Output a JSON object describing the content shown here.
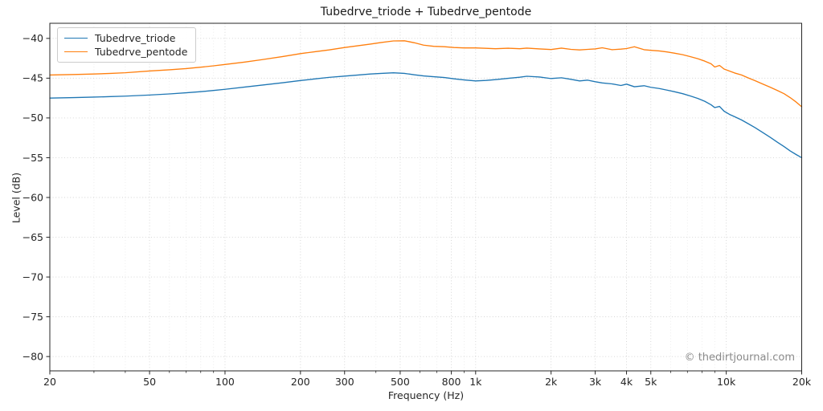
{
  "watermark": "© thedirtjournal.com",
  "colors": {
    "triode": "#1f77b4",
    "pentode": "#ff7f0e",
    "grid_major": "#d2d2d2",
    "grid_minor": "#ebebeb",
    "spine": "#262626",
    "tick_text": "#262626",
    "watermark_text": "#8a8a8a",
    "legend_border": "#cccccc"
  },
  "chart_data": {
    "type": "line",
    "title": "Tubedrve_triode + Tubedrve_pentode",
    "xlabel": "Frequency (Hz)",
    "ylabel": "Level (dB)",
    "x_scale": "log",
    "xlim": [
      20,
      20000
    ],
    "ylim": [
      -81.8,
      -38.1
    ],
    "grid": true,
    "legend_position": "upper left",
    "x_ticks": [
      {
        "value": 20,
        "label": "20"
      },
      {
        "value": 50,
        "label": "50"
      },
      {
        "value": 100,
        "label": "100"
      },
      {
        "value": 200,
        "label": "200"
      },
      {
        "value": 300,
        "label": "300"
      },
      {
        "value": 500,
        "label": "500"
      },
      {
        "value": 800,
        "label": "800"
      },
      {
        "value": 1000,
        "label": "1k"
      },
      {
        "value": 2000,
        "label": "2k"
      },
      {
        "value": 3000,
        "label": "3k"
      },
      {
        "value": 4000,
        "label": "4k"
      },
      {
        "value": 5000,
        "label": "5k"
      },
      {
        "value": 10000,
        "label": "10k"
      },
      {
        "value": 20000,
        "label": "20k"
      }
    ],
    "x_minor_ticks": [
      30,
      40,
      60,
      70,
      80,
      90,
      400,
      600,
      700,
      900,
      6000,
      7000,
      8000,
      9000
    ],
    "y_ticks": [
      {
        "value": -40,
        "label": "−40"
      },
      {
        "value": -45,
        "label": "−45"
      },
      {
        "value": -50,
        "label": "−50"
      },
      {
        "value": -55,
        "label": "−55"
      },
      {
        "value": -60,
        "label": "−60"
      },
      {
        "value": -65,
        "label": "−65"
      },
      {
        "value": -70,
        "label": "−70"
      },
      {
        "value": -75,
        "label": "−75"
      },
      {
        "value": -80,
        "label": "−80"
      }
    ],
    "x_shared": [
      20,
      25,
      30,
      35,
      40,
      50,
      60,
      70,
      80,
      90,
      100,
      120,
      140,
      170,
      200,
      230,
      260,
      300,
      340,
      380,
      420,
      470,
      520,
      570,
      620,
      680,
      750,
      820,
      900,
      1000,
      1100,
      1200,
      1350,
      1500,
      1600,
      1800,
      2000,
      2200,
      2400,
      2600,
      2800,
      3000,
      3200,
      3500,
      3800,
      4000,
      4300,
      4700,
      5000,
      5400,
      5800,
      6200,
      6700,
      7200,
      7700,
      8200,
      8700,
      9000,
      9400,
      9800,
      10300,
      10800,
      11500,
      12200,
      13000,
      14000,
      15000,
      16000,
      17000,
      18000,
      19000,
      20000
    ],
    "series": [
      {
        "name": "Tubedrve_triode",
        "color": "#1f77b4",
        "y": [
          -47.5,
          -47.44,
          -47.38,
          -47.32,
          -47.26,
          -47.12,
          -46.98,
          -46.84,
          -46.7,
          -46.55,
          -46.4,
          -46.12,
          -45.88,
          -45.57,
          -45.3,
          -45.08,
          -44.9,
          -44.74,
          -44.6,
          -44.48,
          -44.4,
          -44.33,
          -44.4,
          -44.58,
          -44.72,
          -44.82,
          -44.92,
          -45.08,
          -45.22,
          -45.35,
          -45.28,
          -45.18,
          -45.02,
          -44.88,
          -44.76,
          -44.86,
          -45.05,
          -44.95,
          -45.15,
          -45.35,
          -45.25,
          -45.45,
          -45.6,
          -45.72,
          -45.92,
          -45.75,
          -46.08,
          -45.95,
          -46.15,
          -46.3,
          -46.5,
          -46.7,
          -46.95,
          -47.25,
          -47.55,
          -47.9,
          -48.35,
          -48.7,
          -48.55,
          -49.15,
          -49.55,
          -49.85,
          -50.25,
          -50.7,
          -51.2,
          -51.85,
          -52.45,
          -53.05,
          -53.6,
          -54.15,
          -54.6,
          -55.0
        ]
      },
      {
        "name": "Tubedrve_pentode",
        "color": "#ff7f0e",
        "y": [
          -44.6,
          -44.54,
          -44.48,
          -44.4,
          -44.32,
          -44.1,
          -43.95,
          -43.8,
          -43.62,
          -43.45,
          -43.28,
          -42.98,
          -42.68,
          -42.28,
          -41.92,
          -41.66,
          -41.45,
          -41.15,
          -40.92,
          -40.72,
          -40.52,
          -40.32,
          -40.3,
          -40.55,
          -40.85,
          -41.0,
          -41.05,
          -41.15,
          -41.2,
          -41.2,
          -41.25,
          -41.3,
          -41.24,
          -41.3,
          -41.22,
          -41.32,
          -41.4,
          -41.22,
          -41.38,
          -41.45,
          -41.38,
          -41.32,
          -41.18,
          -41.42,
          -41.35,
          -41.28,
          -41.05,
          -41.42,
          -41.5,
          -41.58,
          -41.7,
          -41.85,
          -42.05,
          -42.3,
          -42.55,
          -42.85,
          -43.2,
          -43.6,
          -43.4,
          -43.85,
          -44.1,
          -44.35,
          -44.6,
          -44.95,
          -45.3,
          -45.75,
          -46.15,
          -46.55,
          -46.95,
          -47.45,
          -48.0,
          -48.6
        ]
      }
    ]
  }
}
